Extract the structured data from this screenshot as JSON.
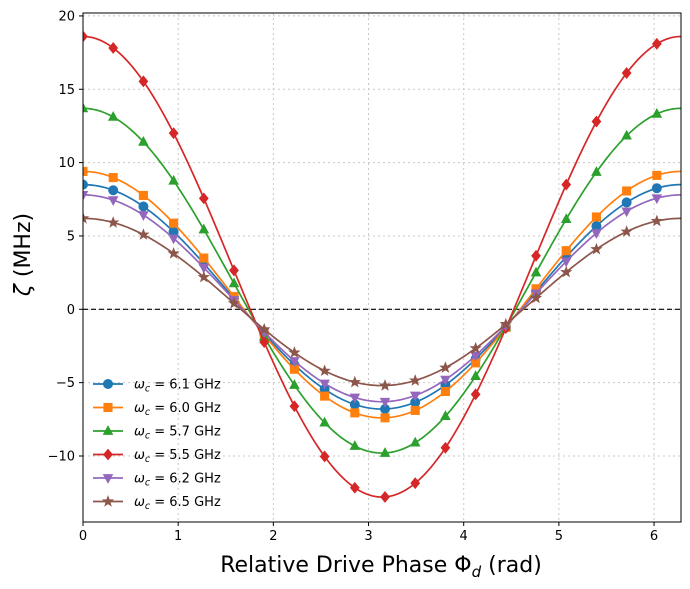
{
  "chart_data": {
    "type": "line",
    "xlabel": "Relative Drive Phase",
    "xlabel_symbol": "Φ",
    "xlabel_sub": "d",
    "xlabel_unit": "(rad)",
    "ylabel": "(MHz)",
    "ylabel_symbol": "ζ",
    "xlim": [
      0,
      6.2832
    ],
    "ylim": [
      -14.5,
      20.2
    ],
    "xticks": [
      0,
      1,
      2,
      3,
      4,
      5,
      6
    ],
    "yticks": [
      -10,
      -5,
      0,
      5,
      10,
      15,
      20
    ],
    "grid": true,
    "reference_line": {
      "y": 0,
      "style": "dashed",
      "color": "#000000"
    },
    "legend_position": "lower-left",
    "marker_x": [
      0,
      0.3173,
      0.6347,
      0.952,
      1.2693,
      1.5867,
      1.904,
      2.2213,
      2.5387,
      2.856,
      3.1733,
      3.4907,
      3.808,
      4.1253,
      4.4427,
      4.76,
      5.0773,
      5.3947,
      5.712,
      6.0293
    ],
    "series": [
      {
        "name": "ω_c = 6.1 GHz",
        "name_symbol": "ω",
        "name_sub": "c",
        "name_value": " = 6.1 GHz",
        "color": "#1f77b4",
        "marker": "circle",
        "amplitude": 7.65,
        "offset": 0.85
      },
      {
        "name": "ω_c = 6.0 GHz",
        "name_symbol": "ω",
        "name_sub": "c",
        "name_value": " = 6.0 GHz",
        "color": "#ff7f0e",
        "marker": "square",
        "amplitude": 8.4,
        "offset": 1.0
      },
      {
        "name": "ω_c = 5.7 GHz",
        "name_symbol": "ω",
        "name_sub": "c",
        "name_value": " = 5.7 GHz",
        "color": "#2ca02c",
        "marker": "triangle-up",
        "amplitude": 11.75,
        "offset": 1.95
      },
      {
        "name": "ω_c = 5.5 GHz",
        "name_symbol": "ω",
        "name_sub": "c",
        "name_value": " = 5.5 GHz",
        "color": "#d62728",
        "marker": "diamond",
        "amplitude": 15.7,
        "offset": 2.9
      },
      {
        "name": "ω_c = 6.2 GHz",
        "name_symbol": "ω",
        "name_sub": "c",
        "name_value": " = 6.2 GHz",
        "color": "#9467bd",
        "marker": "triangle-down",
        "amplitude": 7.05,
        "offset": 0.75
      },
      {
        "name": "ω_c = 6.5 GHz",
        "name_symbol": "ω",
        "name_sub": "c",
        "name_value": " = 6.5 GHz",
        "color": "#8c564b",
        "marker": "star",
        "amplitude": 5.7,
        "offset": 0.5
      }
    ]
  }
}
